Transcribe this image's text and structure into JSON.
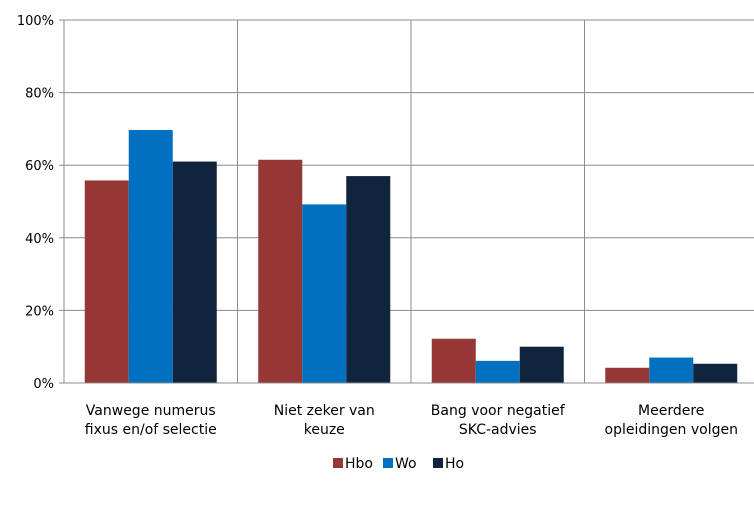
{
  "chart_data": {
    "type": "bar",
    "categories": [
      [
        "Vanwege numerus",
        "fixus en/of selectie"
      ],
      [
        "Niet zeker van",
        "keuze"
      ],
      [
        "Bang voor negatief",
        "SKC-advies"
      ],
      [
        "Meerdere",
        "opleidingen volgen"
      ]
    ],
    "series": [
      {
        "name": "Hbo",
        "color": "#953735",
        "values": [
          55.8,
          61.5,
          12.2,
          4.2
        ]
      },
      {
        "name": "Wo",
        "color": "#0070C0",
        "values": [
          69.7,
          49.2,
          6.1,
          7.0
        ]
      },
      {
        "name": "Ho",
        "color": "#10243E",
        "values": [
          61.0,
          57.0,
          10.0,
          5.3
        ]
      }
    ],
    "ylim": [
      0,
      100
    ],
    "yticks": [
      0,
      20,
      40,
      60,
      80,
      100
    ],
    "ytick_labels": [
      "0%",
      "20%",
      "40%",
      "60%",
      "80%",
      "100%"
    ],
    "grid": "vertical and horizontal",
    "legend_position": "bottom-center"
  }
}
